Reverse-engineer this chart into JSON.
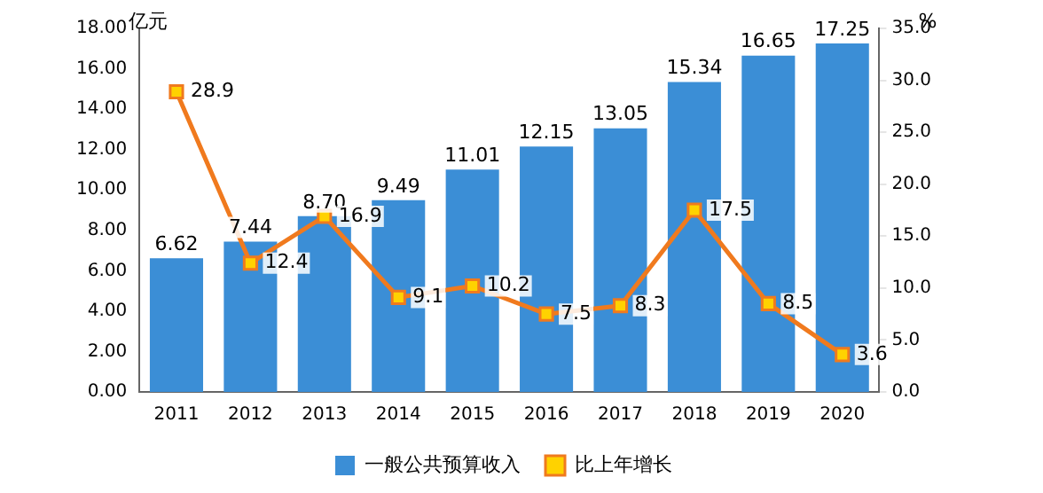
{
  "chart_data": {
    "type": "bar",
    "categories": [
      "2011",
      "2012",
      "2013",
      "2014",
      "2015",
      "2016",
      "2017",
      "2018",
      "2019",
      "2020"
    ],
    "ylabel": "亿元",
    "y2label": "%",
    "series": [
      {
        "name": "一般公共预算收入",
        "color": "#3b8ed6",
        "values": [
          6.62,
          7.44,
          8.7,
          9.49,
          11.01,
          12.15,
          13.05,
          15.34,
          16.65,
          17.25
        ],
        "value_labels": [
          "6.62",
          "7.44",
          "8.70",
          "9.49",
          "11.01",
          "12.15",
          "13.05",
          "15.34",
          "16.65",
          "17.25"
        ]
      },
      {
        "name": "比上年增长",
        "type": "line",
        "axis": "y2",
        "color": "#f07a1e",
        "marker": "square",
        "values": [
          28.9,
          12.4,
          16.9,
          9.1,
          10.2,
          7.5,
          8.3,
          17.5,
          8.5,
          3.6
        ],
        "value_labels": [
          "28.9",
          "12.4",
          "16.9",
          "9.1",
          "10.2",
          "7.5",
          "8.3",
          "17.5",
          "8.5",
          "3.6"
        ]
      }
    ],
    "ylim": [
      0,
      18
    ],
    "yticks": [
      {
        "value": 0,
        "label": "0.00"
      },
      {
        "value": 2,
        "label": "2.00"
      },
      {
        "value": 4,
        "label": "4.00"
      },
      {
        "value": 6,
        "label": "6.00"
      },
      {
        "value": 8,
        "label": "8.00"
      },
      {
        "value": 10,
        "label": "10.00"
      },
      {
        "value": 12,
        "label": "12.00"
      },
      {
        "value": 14,
        "label": "14.00"
      },
      {
        "value": 16,
        "label": "16.00"
      },
      {
        "value": 18,
        "label": "18.00"
      }
    ],
    "y2lim": [
      0,
      35
    ],
    "y2ticks": [
      {
        "value": 0,
        "label": "0.0"
      },
      {
        "value": 5,
        "label": "5.0"
      },
      {
        "value": 10,
        "label": "10.0"
      },
      {
        "value": 15,
        "label": "15.0"
      },
      {
        "value": 20,
        "label": "20.0"
      },
      {
        "value": 25,
        "label": "25.0"
      },
      {
        "value": 30,
        "label": "30.0"
      },
      {
        "value": 35,
        "label": "35.0"
      }
    ],
    "grid": false,
    "legend": "bottom",
    "data_labels": true
  }
}
